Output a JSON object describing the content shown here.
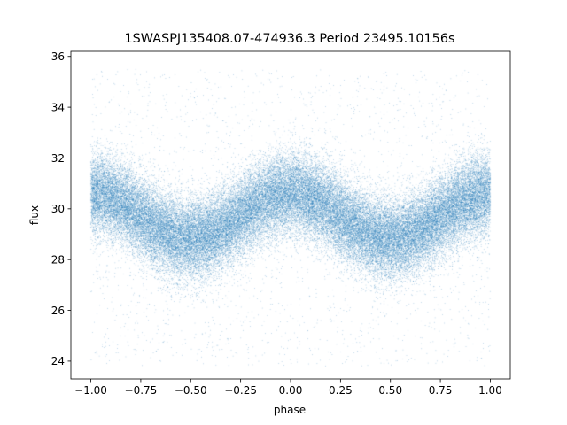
{
  "chart_data": {
    "type": "scatter",
    "title": "1SWASPJ135408.07-474936.3 Period 23495.10156s",
    "xlabel": "phase",
    "ylabel": "flux",
    "xlim": [
      -1.1,
      1.1
    ],
    "ylim": [
      23.3,
      36.2
    ],
    "xticks": [
      -1.0,
      -0.75,
      -0.5,
      -0.25,
      0.0,
      0.25,
      0.5,
      0.75,
      1.0
    ],
    "xtick_labels": [
      "−1.00",
      "−0.75",
      "−0.50",
      "−0.25",
      "0.00",
      "0.25",
      "0.50",
      "0.75",
      "1.00"
    ],
    "yticks": [
      24,
      26,
      28,
      30,
      32,
      34,
      36
    ],
    "ytick_labels": [
      "24",
      "26",
      "28",
      "30",
      "32",
      "34",
      "36"
    ],
    "grid": false,
    "point_color": "#1f77b4",
    "series": [
      {
        "phase_range": [
          -1.0,
          1.0
        ],
        "model": "sinusoidal light curve, two dips per unit phase",
        "mean_flux": 29.7,
        "amplitude": 0.9,
        "min_flux_phases": [
          -0.5,
          0.5
        ],
        "max_flux_phases": [
          -1.0,
          0.0,
          1.0
        ],
        "scatter_sigma": 0.8,
        "outlier_range": [
          23.8,
          35.5
        ]
      }
    ]
  }
}
